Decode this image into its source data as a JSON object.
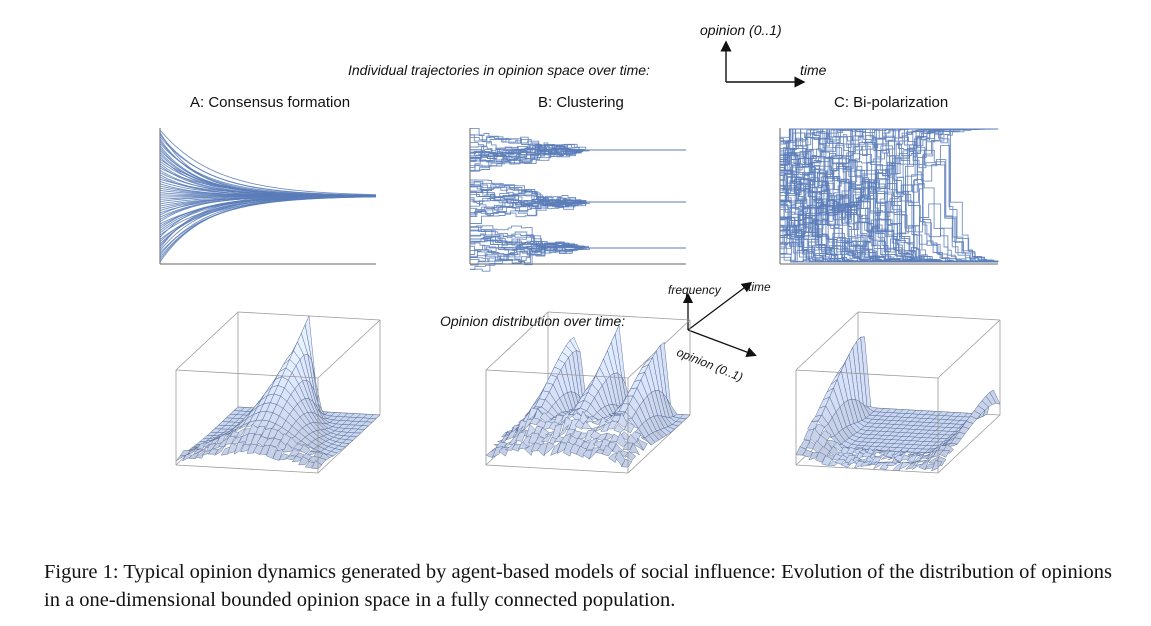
{
  "top_axis_key": {
    "y_label": "opinion (0..1)",
    "x_label": "time"
  },
  "section_trajectories_label": "Individual trajectories in opinion space over time:",
  "panels": [
    {
      "title": "A: Consensus formation"
    },
    {
      "title": "B: Clustering"
    },
    {
      "title": "C: Bi-polarization"
    }
  ],
  "bottom_axis_key": {
    "z_label": "frequency",
    "y_label": "time",
    "x_label": "opinion (0..1)"
  },
  "section_distribution_label": "Opinion distribution over time:",
  "caption": "Figure 1: Typical opinion dynamics generated by agent-based models of social influence: Evolution of the distribution of opinions in a one-dimensional bounded opinion space in a fully connected population.",
  "colors": {
    "trajectory": "#5a7db8",
    "surface_fill": "#c9d6ef",
    "surface_grid": "#4a5f8c",
    "box": "#9a9a9a"
  }
}
